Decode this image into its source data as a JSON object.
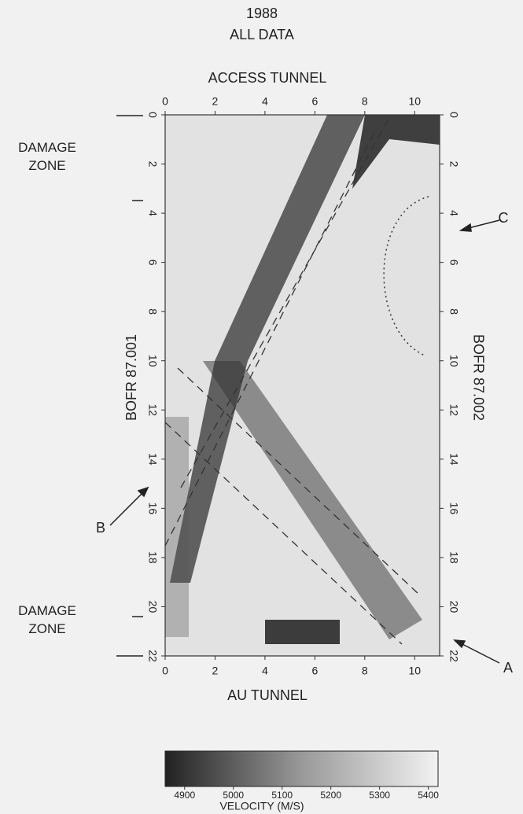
{
  "chart_data": {
    "type": "tomogram",
    "title": "1988",
    "subtitle": "ALL DATA",
    "x_label_top": "ACCESS TUNNEL",
    "x_label": "AU TUNNEL",
    "y_label": "BOFR 87.001",
    "y2_label": "BOFR 87.002",
    "xlim": [
      0,
      11
    ],
    "xticks": [
      0,
      2,
      4,
      6,
      8,
      10
    ],
    "ylim": [
      0,
      22
    ],
    "yticks": [
      0,
      2,
      4,
      6,
      8,
      10,
      12,
      14,
      16,
      18,
      20,
      22
    ],
    "annotations": [
      "DAMAGE ZONE",
      "DAMAGE ZONE",
      "C",
      "B",
      "A"
    ],
    "colorbar": {
      "label": "VELOCITY (M/S)",
      "lim": [
        4860,
        5420
      ],
      "ticks": [
        4900,
        5000,
        5100,
        5200,
        5300,
        5400
      ]
    }
  }
}
